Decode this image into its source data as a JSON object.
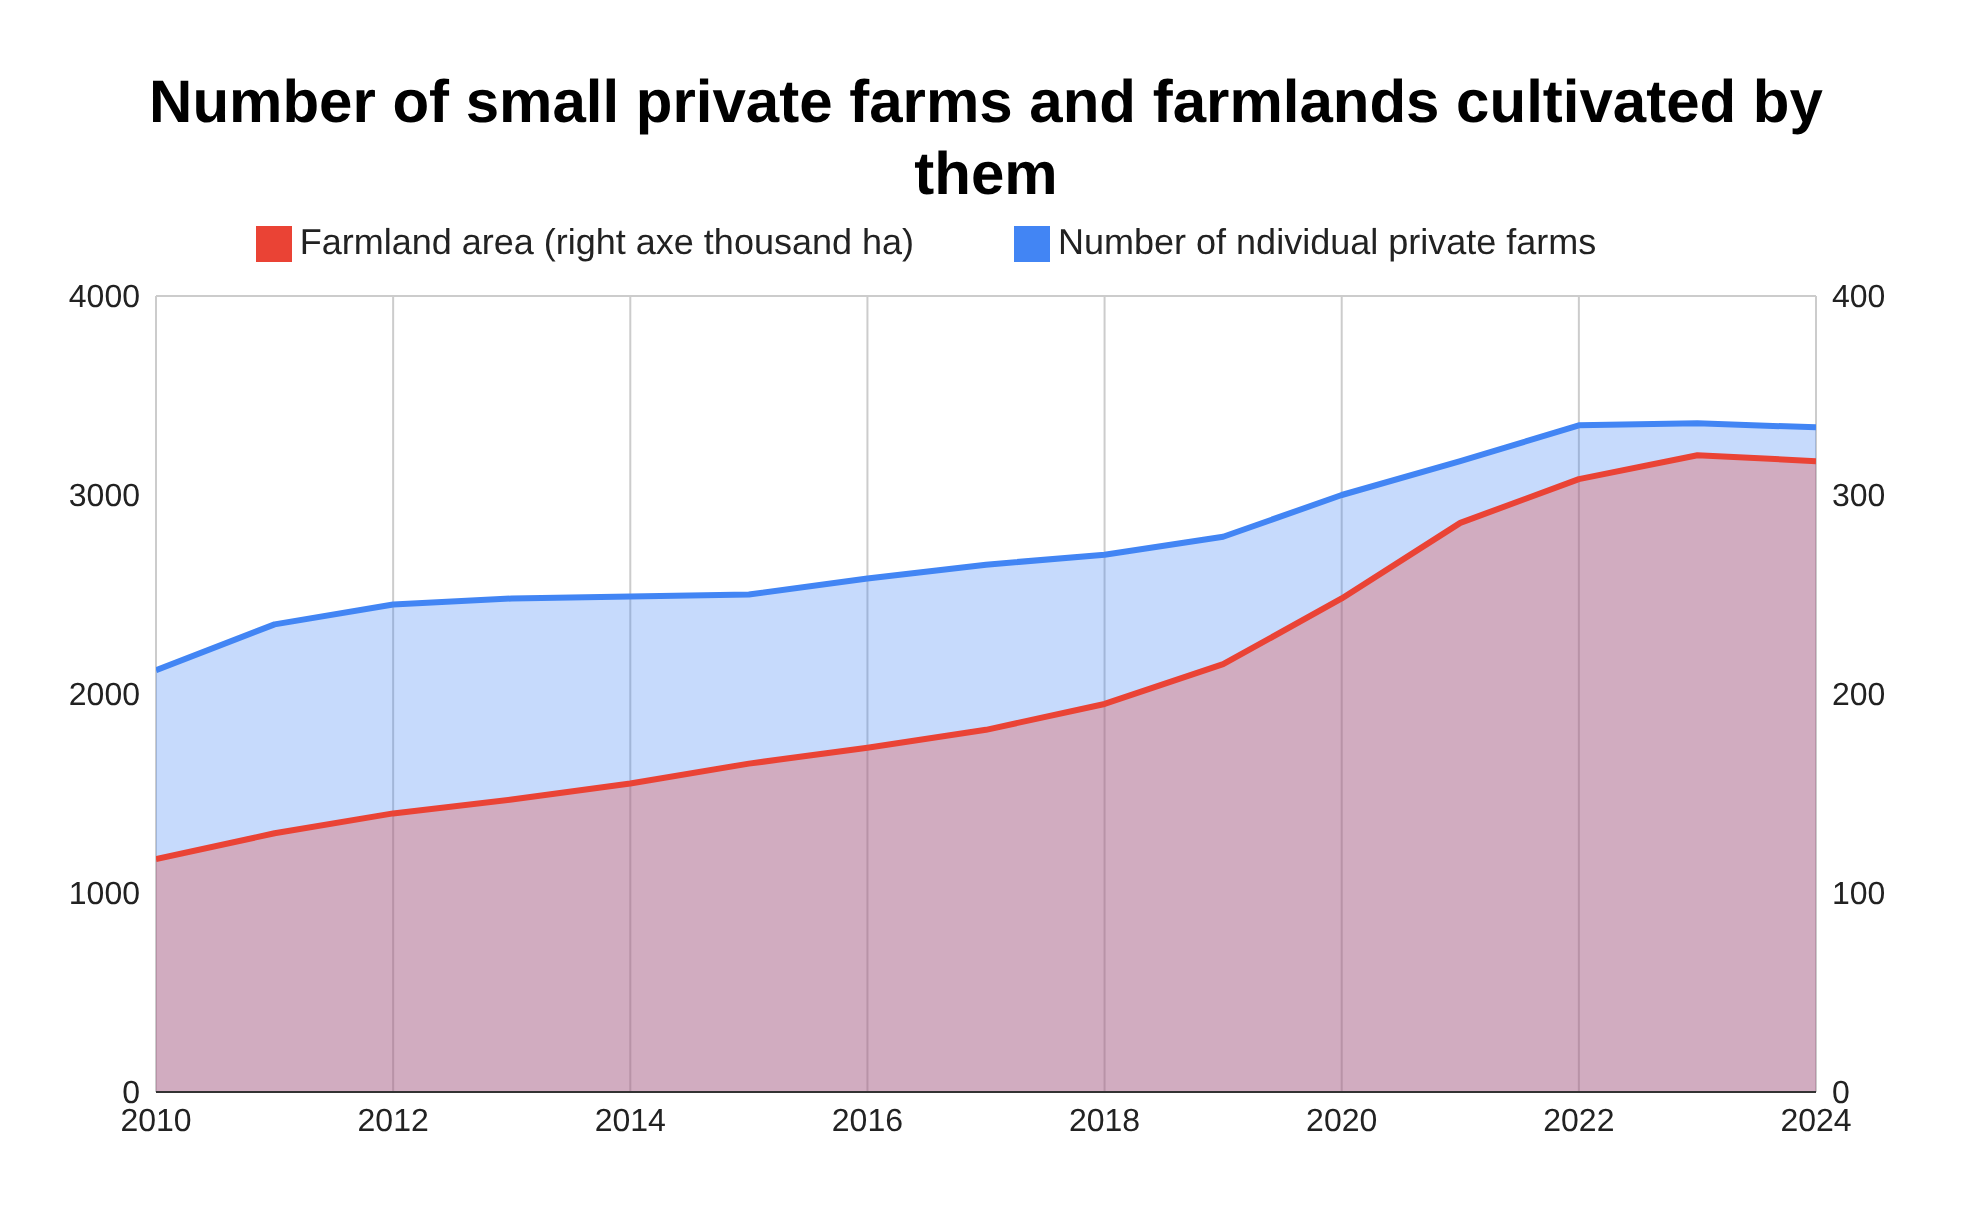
{
  "chart_data": {
    "type": "area",
    "title": "Number of small private farms and farmlands cultivated by them",
    "x": [
      2010,
      2011,
      2012,
      2013,
      2014,
      2015,
      2016,
      2017,
      2018,
      2019,
      2020,
      2021,
      2022,
      2023,
      2024
    ],
    "series": [
      {
        "name": "Number of ndividual private farms",
        "color": "#4285f4",
        "values": [
          2120,
          2350,
          2450,
          2480,
          2490,
          2500,
          2580,
          2650,
          2700,
          2790,
          3000,
          3170,
          3350,
          3360,
          3340
        ]
      },
      {
        "name": "Farmland area (right axe thousand ha)",
        "color": "#ea4335",
        "axis": "y2",
        "values": [
          117,
          130,
          140,
          147,
          155,
          165,
          173,
          182,
          195,
          215,
          248,
          286,
          308,
          320,
          317
        ]
      }
    ],
    "xlim": [
      2010,
      2024
    ],
    "xticks": [
      2010,
      2012,
      2014,
      2016,
      2018,
      2020,
      2022,
      2024
    ],
    "ylim": [
      0,
      4000
    ],
    "yticks": [
      0,
      1000,
      2000,
      3000,
      4000
    ],
    "y2lim": [
      0,
      400
    ],
    "y2ticks": [
      0,
      100,
      200,
      300,
      400
    ],
    "grid": true,
    "legend": "top",
    "marker": "none",
    "line_style": "solid"
  }
}
